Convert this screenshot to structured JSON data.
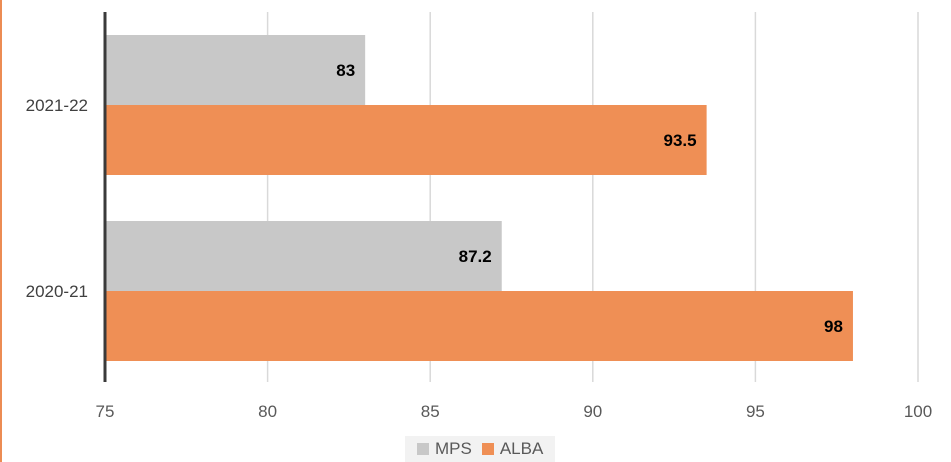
{
  "chart_data": {
    "type": "bar",
    "orientation": "horizontal",
    "categories": [
      "2021-22",
      "2020-21"
    ],
    "series": [
      {
        "name": "MPS",
        "values": [
          83,
          87.2
        ],
        "color": "#c8c8c8"
      },
      {
        "name": "ALBA",
        "values": [
          93.5,
          98
        ],
        "color": "#ef8f55"
      }
    ],
    "xlim": [
      75,
      100
    ],
    "xticks": [
      "75",
      "80",
      "85",
      "90",
      "95",
      "100"
    ],
    "grid": true,
    "legend_position": "bottom",
    "data_labels": [
      "83",
      "93.5",
      "87.2",
      "98"
    ]
  }
}
